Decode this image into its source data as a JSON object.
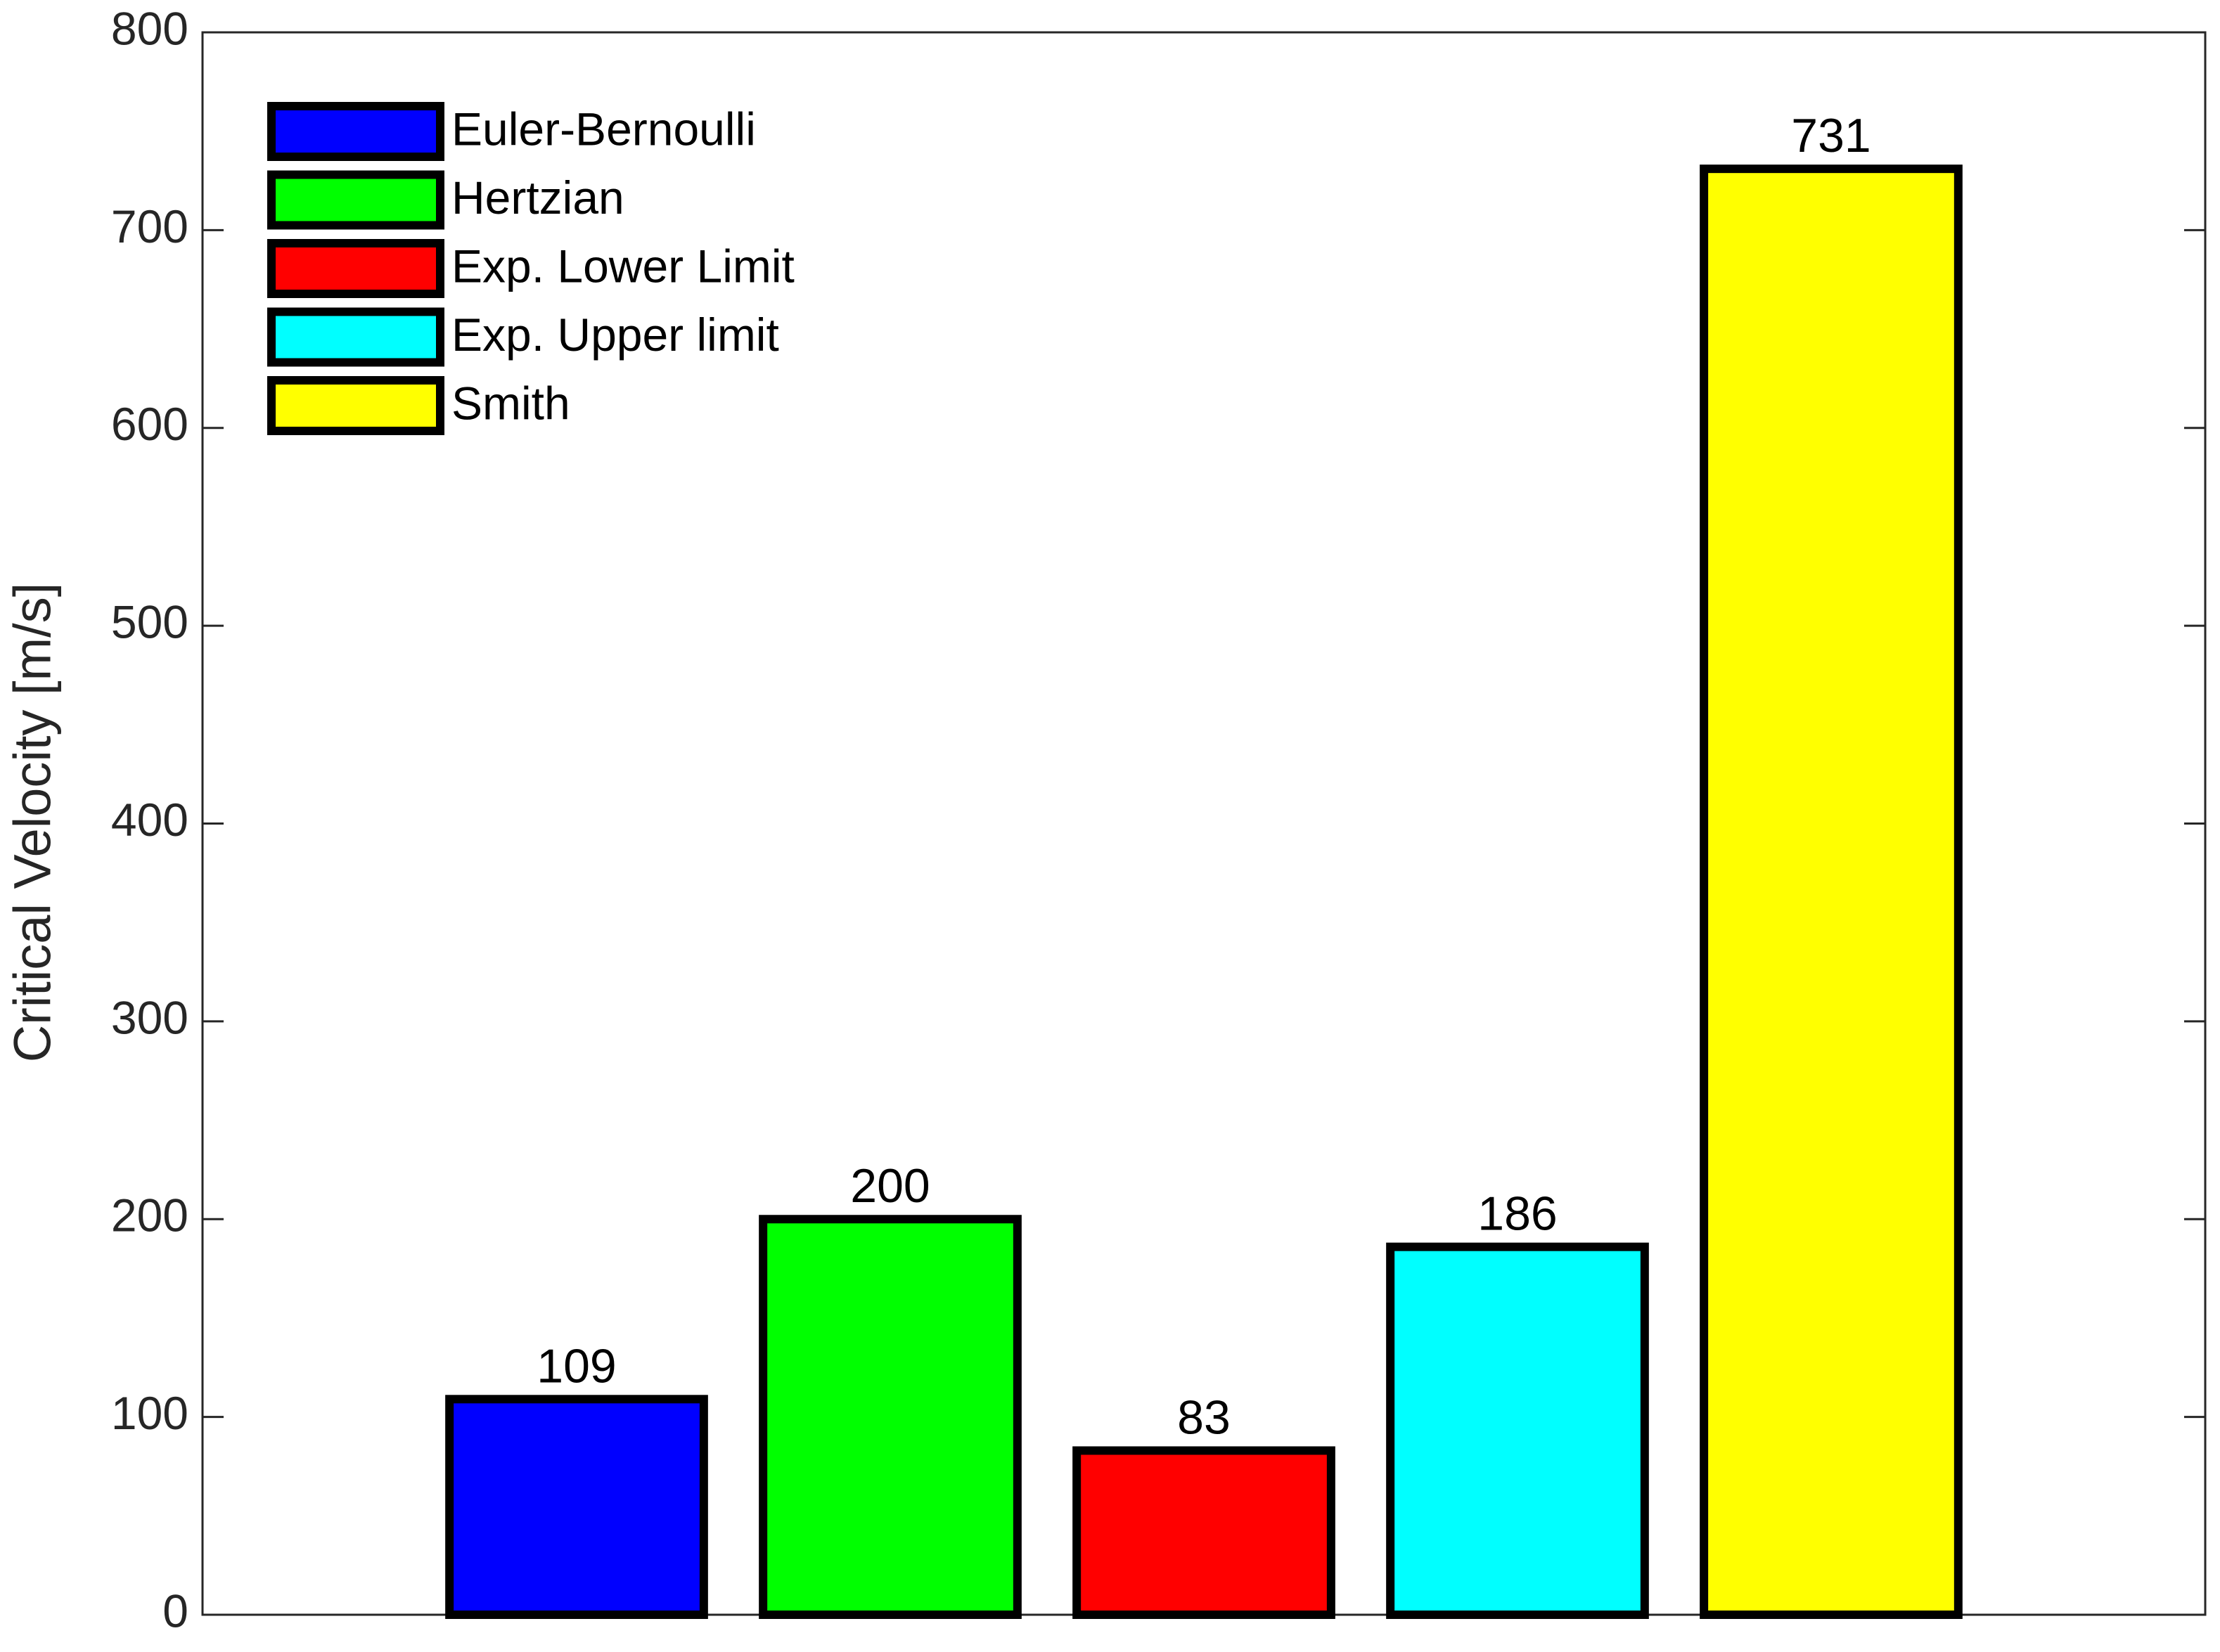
{
  "chart_data": {
    "type": "bar",
    "y_label": "Critical Velocity [m/s]",
    "categories": [
      null
    ],
    "series": [
      {
        "name": "Euler-Bernoulli",
        "color": "#0000ff",
        "values": [
          109
        ]
      },
      {
        "name": "Hertzian",
        "color": "#00ff00",
        "values": [
          200
        ]
      },
      {
        "name": "Exp. Lower Limit",
        "color": "#ff0000",
        "values": [
          83
        ]
      },
      {
        "name": "Exp. Upper limit",
        "color": "#00ffff",
        "values": [
          186
        ]
      },
      {
        "name": "Smith",
        "color": "#ffff00",
        "values": [
          731
        ]
      }
    ],
    "ylim": [
      0,
      800
    ],
    "yticks": [
      0,
      100,
      200,
      300,
      400,
      500,
      600,
      700,
      800
    ],
    "grid": false,
    "legend": "upper left",
    "show_value_labels": true
  }
}
